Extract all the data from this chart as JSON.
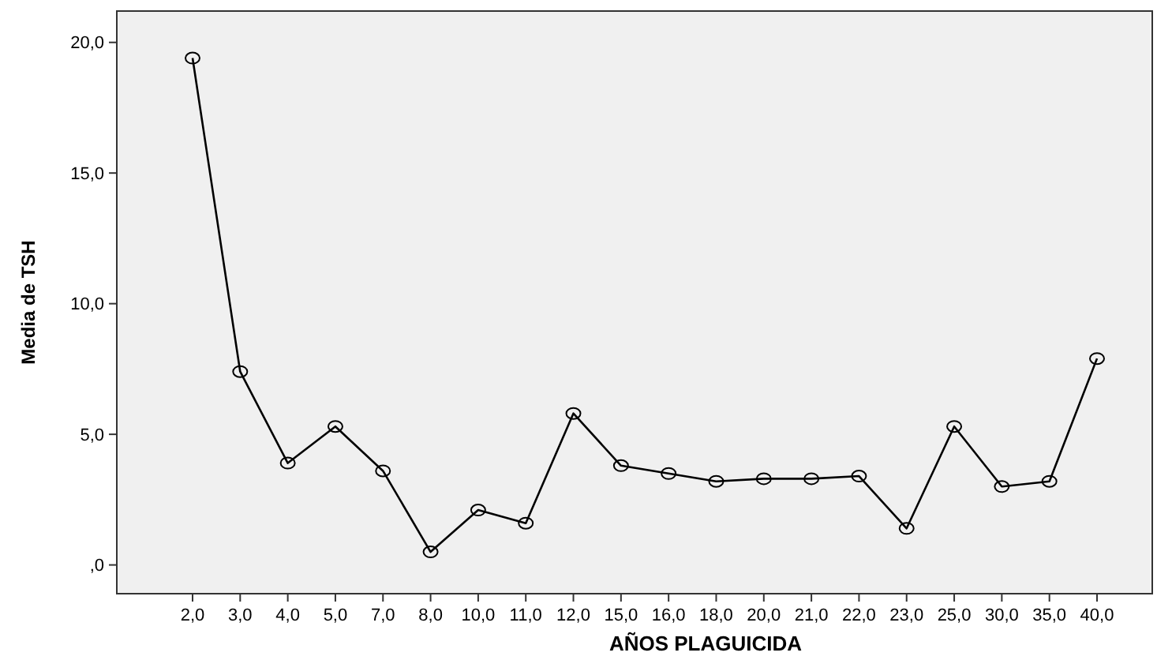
{
  "chart_data": {
    "type": "line",
    "xlabel": "AÑOS PLAGUICIDA",
    "ylabel": "Media de TSH",
    "categories": [
      "2,0",
      "3,0",
      "4,0",
      "5,0",
      "7,0",
      "8,0",
      "10,0",
      "11,0",
      "12,0",
      "15,0",
      "16,0",
      "18,0",
      "20,0",
      "21,0",
      "22,0",
      "23,0",
      "25,0",
      "30,0",
      "35,0",
      "40,0"
    ],
    "series": [
      {
        "color": "#000000",
        "values": [
          19.4,
          7.4,
          3.9,
          5.3,
          3.6,
          0.5,
          2.1,
          1.6,
          5.8,
          3.8,
          3.5,
          3.2,
          3.3,
          3.3,
          3.4,
          1.4,
          5.3,
          3.0,
          3.2,
          7.9
        ]
      }
    ],
    "ylim": [
      -1.1,
      21.2
    ],
    "yticks": [
      {
        "value": 0,
        "label": ",0"
      },
      {
        "value": 5,
        "label": "5,0"
      },
      {
        "value": 10,
        "label": "10,0"
      },
      {
        "value": 15,
        "label": "15,0"
      },
      {
        "value": 20,
        "label": "20,0"
      }
    ],
    "marker": "circle",
    "grid": false
  }
}
